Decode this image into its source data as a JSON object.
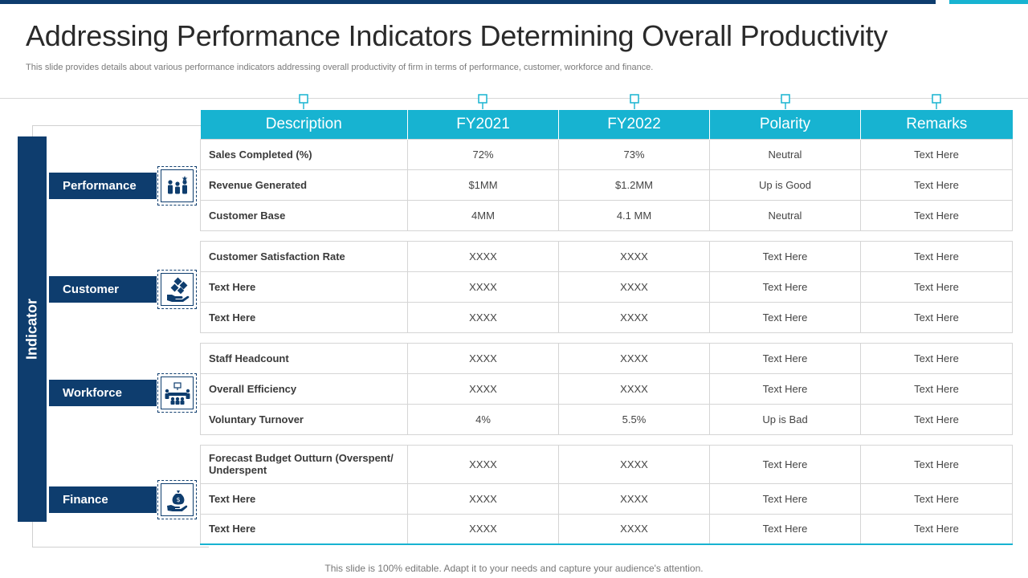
{
  "slide": {
    "title": "Addressing Performance Indicators Determining Overall Productivity",
    "subtitle": "This slide provides details about various performance indicators addressing overall productivity of firm in terms of performance, customer, workforce and finance.",
    "footer": "This slide is 100% editable. Adapt it to your needs and capture your audience's attention.",
    "indicator_label": "Indicator"
  },
  "colors": {
    "navy": "#0e3d6e",
    "cyan": "#17b3d1"
  },
  "categories": [
    {
      "label": "Performance",
      "icon": "team-icon"
    },
    {
      "label": "Customer",
      "icon": "hand-diamonds-icon"
    },
    {
      "label": "Workforce",
      "icon": "meeting-table-icon"
    },
    {
      "label": "Finance",
      "icon": "money-bag-hand-icon"
    }
  ],
  "table": {
    "headers": [
      "Description",
      "FY2021",
      "FY2022",
      "Polarity",
      "Remarks"
    ],
    "groups": [
      [
        [
          "Sales Completed (%)",
          "72%",
          "73%",
          "Neutral",
          "Text Here"
        ],
        [
          "Revenue Generated",
          "$1MM",
          "$1.2MM",
          "Up is Good",
          "Text Here"
        ],
        [
          "Customer  Base",
          "4MM",
          "4.1 MM",
          "Neutral",
          "Text Here"
        ]
      ],
      [
        [
          "Customer  Satisfaction Rate",
          "XXXX",
          "XXXX",
          "Text Here",
          "Text Here"
        ],
        [
          "Text Here",
          "XXXX",
          "XXXX",
          "Text Here",
          "Text Here"
        ],
        [
          "Text Here",
          "XXXX",
          "XXXX",
          "Text Here",
          "Text Here"
        ]
      ],
      [
        [
          "Staff Headcount",
          "XXXX",
          "XXXX",
          "Text Here",
          "Text Here"
        ],
        [
          "Overall Efficiency",
          "XXXX",
          "XXXX",
          "Text Here",
          "Text Here"
        ],
        [
          "Voluntary Turnover",
          "4%",
          "5.5%",
          "Up is Bad",
          "Text Here"
        ]
      ],
      [
        [
          "Forecast Budget Outturn (Overspent/ Underspent",
          "XXXX",
          "XXXX",
          "Text Here",
          "Text Here"
        ],
        [
          "Text Here",
          "XXXX",
          "XXXX",
          "Text Here",
          "Text Here"
        ],
        [
          "Text Here",
          "XXXX",
          "XXXX",
          "Text Here",
          "Text Here"
        ]
      ]
    ]
  }
}
